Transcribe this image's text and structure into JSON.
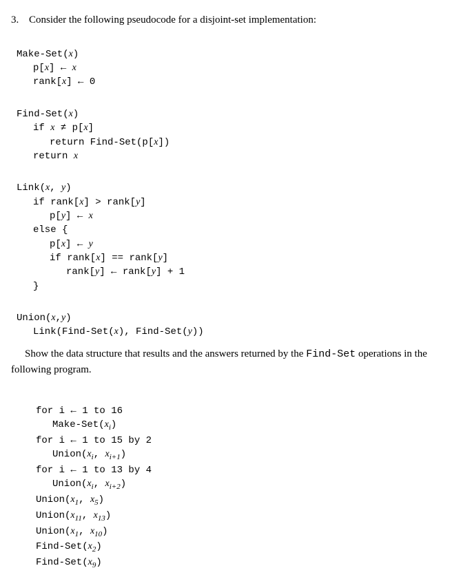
{
  "problem": {
    "number": "3.",
    "intro": "Consider the following pseudocode for a disjoint-set implementation:"
  },
  "makeset": {
    "sig_mono": "Make-Set(",
    "sig_var": "x",
    "sig_close": ")",
    "l1_a": "p[",
    "l1_b": "x",
    "l1_c": "] ← ",
    "l1_d": "x",
    "l2_a": "rank[",
    "l2_b": "x",
    "l2_c": "] ← 0"
  },
  "findset": {
    "sig_a": "Find-Set(",
    "sig_b": "x",
    "sig_c": ")",
    "l1_a": "if ",
    "l1_b": "x",
    "l1_c": " ≠ p[",
    "l1_d": "x",
    "l1_e": "]",
    "l2_a": "return Find-Set(p[",
    "l2_b": "x",
    "l2_c": "])",
    "l3_a": "return ",
    "l3_b": "x"
  },
  "link": {
    "sig_a": "Link(",
    "sig_b": "x",
    "sig_c": ", ",
    "sig_d": "y",
    "sig_e": ")",
    "l1_a": "if rank[",
    "l1_b": "x",
    "l1_c": "] > rank[",
    "l1_d": "y",
    "l1_e": "]",
    "l2_a": "p[",
    "l2_b": "y",
    "l2_c": "] ← ",
    "l2_d": "x",
    "l3": "else {",
    "l4_a": "p[",
    "l4_b": "x",
    "l4_c": "] ← ",
    "l4_d": "y",
    "l5_a": "if rank[",
    "l5_b": "x",
    "l5_c": "] == rank[",
    "l5_d": "y",
    "l5_e": "]",
    "l6_a": "rank[",
    "l6_b": "y",
    "l6_c": "] ← rank[",
    "l6_d": "y",
    "l6_e": "] + 1",
    "l7": "}"
  },
  "union": {
    "sig_a": "Union(",
    "sig_b": "x",
    "sig_c": ",",
    "sig_d": "y",
    "sig_e": ")",
    "l1_a": "Link(Find-Set(",
    "l1_b": "x",
    "l1_c": "), Find-Set(",
    "l1_d": "y",
    "l1_e": "))"
  },
  "question": {
    "text_a": "Show the data structure that results and the answers returned by the ",
    "text_b": "Find-Set",
    "text_c": " operations in the following program."
  },
  "program": {
    "l1": "for i ← 1 to 16",
    "l2_a": "Make-Set(",
    "l2_b": "x",
    "l2_sub": "i",
    "l2_c": ")",
    "l3": "for i ← 1 to 15 by 2",
    "l4_a": "Union(",
    "l4_b": "x",
    "l4_sub1": "i",
    "l4_c": ", ",
    "l4_d": "x",
    "l4_sub2": "i+1",
    "l4_e": ")",
    "l5": "for i ← 1 to 13 by 4",
    "l6_a": "Union(",
    "l6_b": "x",
    "l6_sub1": "i",
    "l6_c": ", ",
    "l6_d": "x",
    "l6_sub2": "i+2",
    "l6_e": ")",
    "l7_a": "Union(",
    "l7_b": "x",
    "l7_sub1": "1",
    "l7_c": ", ",
    "l7_d": "x",
    "l7_sub2": "5",
    "l7_e": ")",
    "l8_a": "Union(",
    "l8_b": "x",
    "l8_sub1": "11",
    "l8_c": ", ",
    "l8_d": "x",
    "l8_sub2": "13",
    "l8_e": ")",
    "l9_a": "Union(",
    "l9_b": "x",
    "l9_sub1": "1",
    "l9_c": ", ",
    "l9_d": "x",
    "l9_sub2": "10",
    "l9_e": ")",
    "l10_a": "Find-Set(",
    "l10_b": "x",
    "l10_sub": "2",
    "l10_c": ")",
    "l11_a": "Find-Set(",
    "l11_b": "x",
    "l11_sub": "9",
    "l11_c": ")"
  }
}
